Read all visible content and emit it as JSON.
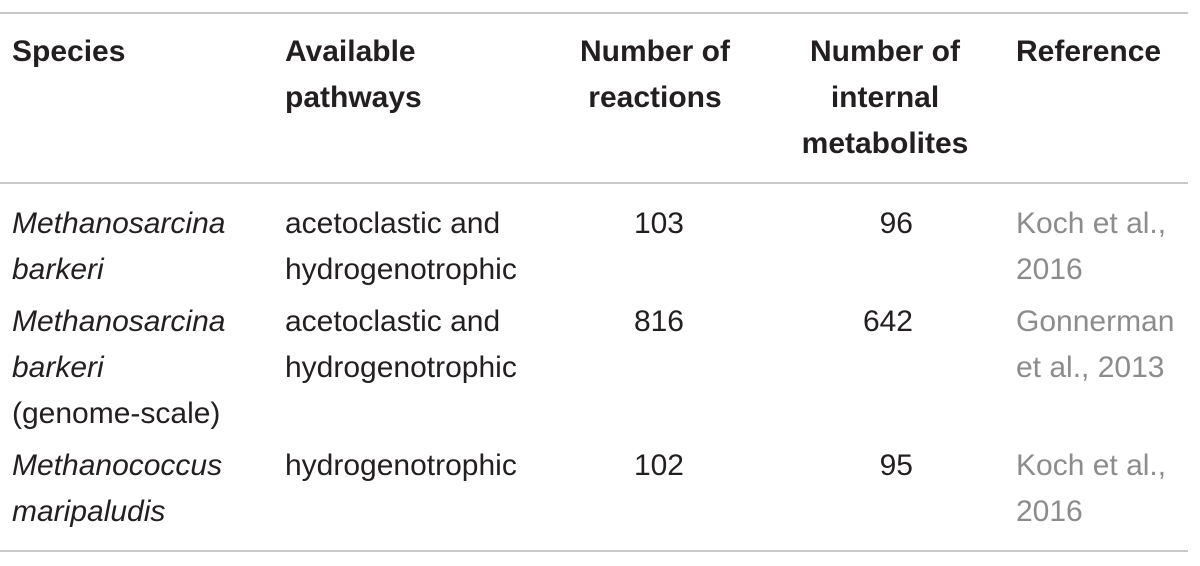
{
  "table": {
    "headers": {
      "species": "Species",
      "pathways": [
        "Available",
        "pathways"
      ],
      "reactions": [
        "Number of",
        "reactions"
      ],
      "metabolites": [
        "Number of",
        "internal",
        "metabolites"
      ],
      "reference": "Reference"
    },
    "rows": [
      {
        "species": [
          "Methanosarcina",
          "barkeri"
        ],
        "species_note": "",
        "pathways": [
          "acetoclastic and",
          "hydrogenotrophic"
        ],
        "reactions": "103",
        "metabolites": "96",
        "reference": [
          "Koch et al.,",
          "2016"
        ]
      },
      {
        "species": [
          "Methanosarcina",
          "barkeri"
        ],
        "species_note": "(genome-scale)",
        "pathways": [
          "acetoclastic and",
          "hydrogenotrophic"
        ],
        "reactions": "816",
        "metabolites": "642",
        "reference": [
          "Gonnerman",
          "et al., 2013"
        ]
      },
      {
        "species": [
          "Methanococcus",
          "maripaludis"
        ],
        "species_note": "",
        "pathways": [
          "hydrogenotrophic"
        ],
        "reactions": "102",
        "metabolites": "95",
        "reference": [
          "Koch et al.,",
          "2016"
        ]
      }
    ]
  },
  "colors": {
    "text": "#231f20",
    "reference_text": "#8c8c8c",
    "rule": "#c9c9c9"
  }
}
